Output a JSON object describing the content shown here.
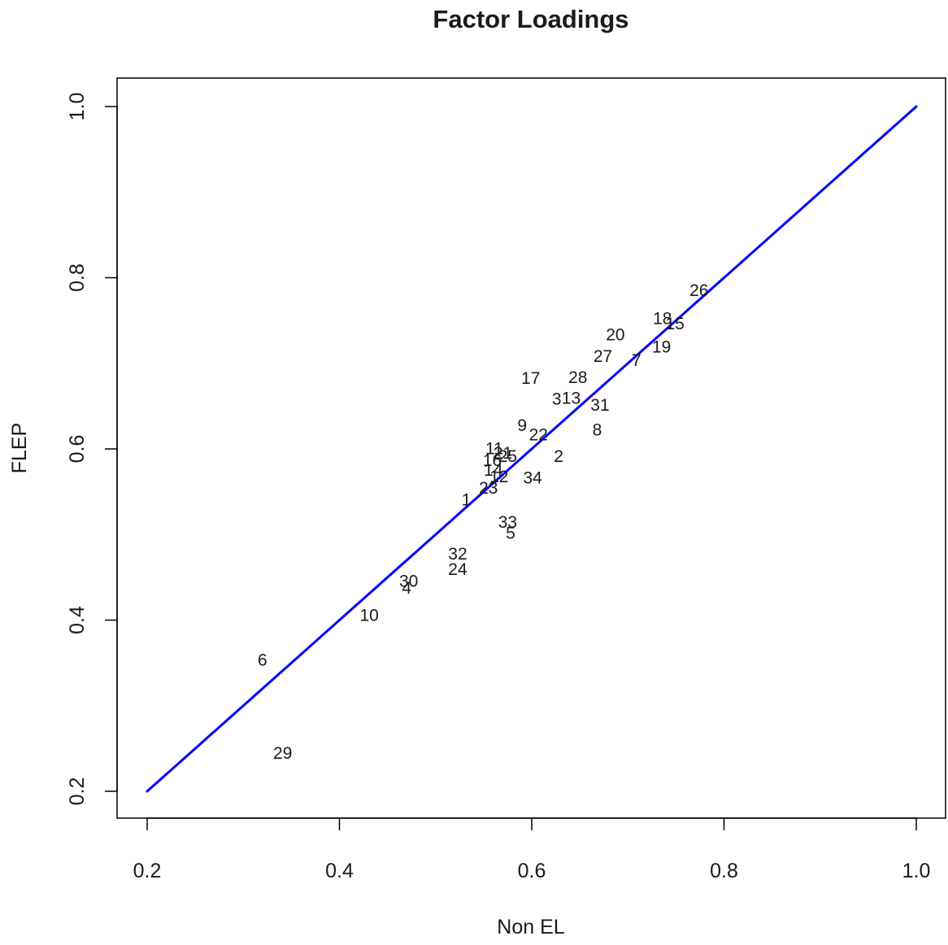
{
  "chart_data": {
    "type": "scatter",
    "title": "Factor Loadings",
    "xlabel": "Non EL",
    "ylabel": "FLEP",
    "xlim": [
      0.2,
      1.0
    ],
    "ylim": [
      0.2,
      1.0
    ],
    "x_ticks": [
      "0.2",
      "0.4",
      "0.6",
      "0.8",
      "1.0"
    ],
    "y_ticks": [
      "0.2",
      "0.4",
      "0.6",
      "0.8",
      "1.0"
    ],
    "grid": false,
    "legend": "none",
    "reference_line": {
      "x": [
        0.2,
        1.0
      ],
      "y": [
        0.2,
        1.0
      ],
      "color": "#0000ff"
    },
    "points": [
      {
        "label": "1",
        "x": 0.532,
        "y": 0.54
      },
      {
        "label": "2",
        "x": 0.628,
        "y": 0.591
      },
      {
        "label": "3",
        "x": 0.626,
        "y": 0.658
      },
      {
        "label": "4",
        "x": 0.47,
        "y": 0.437
      },
      {
        "label": "5",
        "x": 0.578,
        "y": 0.501
      },
      {
        "label": "6",
        "x": 0.32,
        "y": 0.353
      },
      {
        "label": "7",
        "x": 0.709,
        "y": 0.703
      },
      {
        "label": "8",
        "x": 0.668,
        "y": 0.622
      },
      {
        "label": "9",
        "x": 0.59,
        "y": 0.627
      },
      {
        "label": "10",
        "x": 0.431,
        "y": 0.405
      },
      {
        "label": "11",
        "x": 0.561,
        "y": 0.6
      },
      {
        "label": "12",
        "x": 0.566,
        "y": 0.567
      },
      {
        "label": "13",
        "x": 0.641,
        "y": 0.659
      },
      {
        "label": "14",
        "x": 0.56,
        "y": 0.575
      },
      {
        "label": "15",
        "x": 0.749,
        "y": 0.746
      },
      {
        "label": "16",
        "x": 0.559,
        "y": 0.586
      },
      {
        "label": "17",
        "x": 0.599,
        "y": 0.682
      },
      {
        "label": "18",
        "x": 0.736,
        "y": 0.752
      },
      {
        "label": "19",
        "x": 0.735,
        "y": 0.719
      },
      {
        "label": "20",
        "x": 0.687,
        "y": 0.733
      },
      {
        "label": "21",
        "x": 0.57,
        "y": 0.595
      },
      {
        "label": "22",
        "x": 0.607,
        "y": 0.616
      },
      {
        "label": "23",
        "x": 0.555,
        "y": 0.554
      },
      {
        "label": "24",
        "x": 0.523,
        "y": 0.459
      },
      {
        "label": "25",
        "x": 0.575,
        "y": 0.591
      },
      {
        "label": "26",
        "x": 0.774,
        "y": 0.785
      },
      {
        "label": "27",
        "x": 0.674,
        "y": 0.708
      },
      {
        "label": "28",
        "x": 0.648,
        "y": 0.683
      },
      {
        "label": "29",
        "x": 0.341,
        "y": 0.244
      },
      {
        "label": "30",
        "x": 0.472,
        "y": 0.445
      },
      {
        "label": "31",
        "x": 0.671,
        "y": 0.651
      },
      {
        "label": "32",
        "x": 0.523,
        "y": 0.477
      },
      {
        "label": "33",
        "x": 0.575,
        "y": 0.514
      },
      {
        "label": "34",
        "x": 0.601,
        "y": 0.566
      }
    ]
  }
}
